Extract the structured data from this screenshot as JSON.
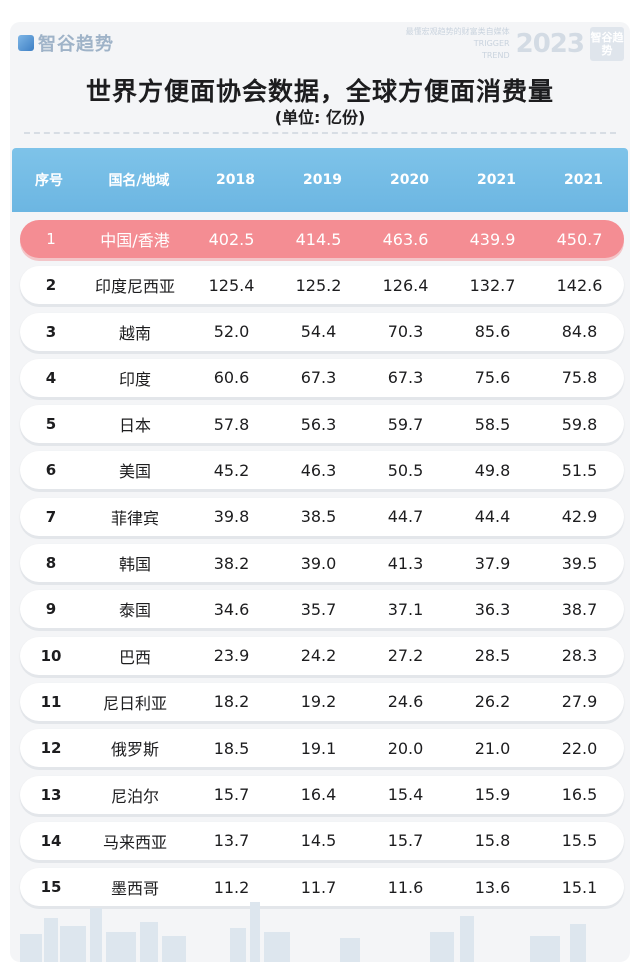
{
  "brand": {
    "name": "智谷趋势",
    "slogan_line1": "最懂宏观趋势的财富类自媒体",
    "slogan_line2": "TRIGGER",
    "slogan_line3": "TREND",
    "year": "2023",
    "badge": "智谷趋势"
  },
  "title": "世界方便面协会数据，全球方便面消费量",
  "subtitle": "(单位: 亿份)",
  "table": {
    "headers": [
      "序号",
      "国名/地域",
      "2018",
      "2019",
      "2020",
      "2021",
      "2021"
    ],
    "rows": [
      [
        "1",
        "中国/香港",
        "402.5",
        "414.5",
        "463.6",
        "439.9",
        "450.7"
      ],
      [
        "2",
        "印度尼西亚",
        "125.4",
        "125.2",
        "126.4",
        "132.7",
        "142.6"
      ],
      [
        "3",
        "越南",
        "52.0",
        "54.4",
        "70.3",
        "85.6",
        "84.8"
      ],
      [
        "4",
        "印度",
        "60.6",
        "67.3",
        "67.3",
        "75.6",
        "75.8"
      ],
      [
        "5",
        "日本",
        "57.8",
        "56.3",
        "59.7",
        "58.5",
        "59.8"
      ],
      [
        "6",
        "美国",
        "45.2",
        "46.3",
        "50.5",
        "49.8",
        "51.5"
      ],
      [
        "7",
        "菲律宾",
        "39.8",
        "38.5",
        "44.7",
        "44.4",
        "42.9"
      ],
      [
        "8",
        "韩国",
        "38.2",
        "39.0",
        "41.3",
        "37.9",
        "39.5"
      ],
      [
        "9",
        "泰国",
        "34.6",
        "35.7",
        "37.1",
        "36.3",
        "38.7"
      ],
      [
        "10",
        "巴西",
        "23.9",
        "24.2",
        "27.2",
        "28.5",
        "28.3"
      ],
      [
        "11",
        "尼日利亚",
        "18.2",
        "19.2",
        "24.6",
        "26.2",
        "27.9"
      ],
      [
        "12",
        "俄罗斯",
        "18.5",
        "19.1",
        "20.0",
        "21.0",
        "22.0"
      ],
      [
        "13",
        "尼泊尔",
        "15.7",
        "16.4",
        "15.4",
        "15.9",
        "16.5"
      ],
      [
        "14",
        "马来西亚",
        "13.7",
        "14.5",
        "15.7",
        "15.8",
        "15.5"
      ],
      [
        "15",
        "墨西哥",
        "11.2",
        "11.7",
        "11.6",
        "13.6",
        "15.1"
      ]
    ]
  },
  "colors": {
    "header": "#6cb6e2",
    "highlight_row": "#f48d93"
  }
}
